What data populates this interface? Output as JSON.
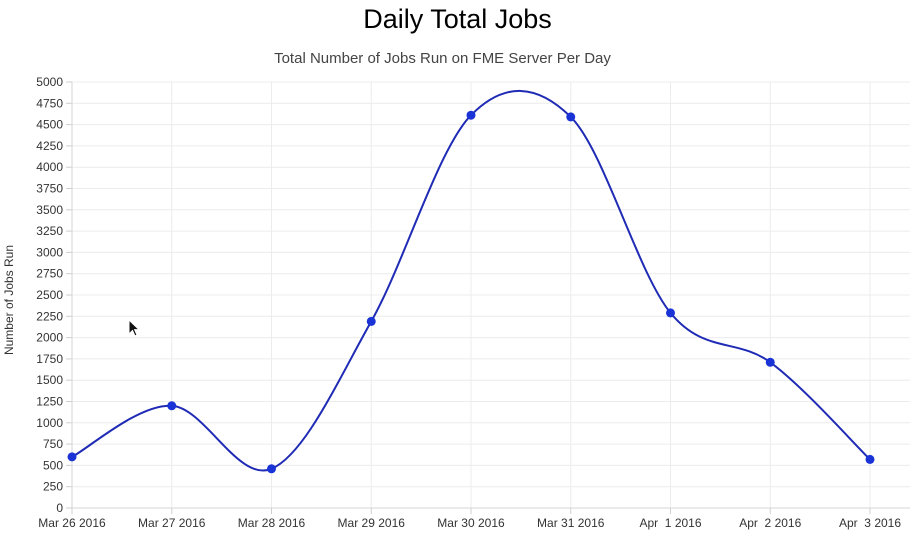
{
  "chart_data": {
    "type": "line",
    "title": "Daily Total Jobs",
    "subtitle": "Total Number of Jobs Run on FME Server Per Day",
    "xlabel": "",
    "ylabel": "Number of Jobs Run",
    "categories": [
      "Mar 26 2016",
      "Mar 27 2016",
      "Mar 28 2016",
      "Mar 29 2016",
      "Mar 30 2016",
      "Mar 31 2016",
      "Apr  1 2016",
      "Apr  2 2016",
      "Apr  3 2016"
    ],
    "series": [
      {
        "values": [
          600,
          1200,
          460,
          2190,
          4610,
          4590,
          2290,
          1710,
          570
        ]
      }
    ],
    "ylim": [
      0,
      5000
    ],
    "yticks": [
      0,
      250,
      500,
      750,
      1000,
      1250,
      1500,
      1750,
      2000,
      2250,
      2500,
      2750,
      3000,
      3250,
      3500,
      3750,
      4000,
      4250,
      4500,
      4750,
      5000
    ],
    "grid": true,
    "legend": "none",
    "line_color": "#1f2bb5",
    "point_color": "#1a33d6",
    "grid_color": "#ececec"
  },
  "cursor_icon": "arrow-pointer"
}
